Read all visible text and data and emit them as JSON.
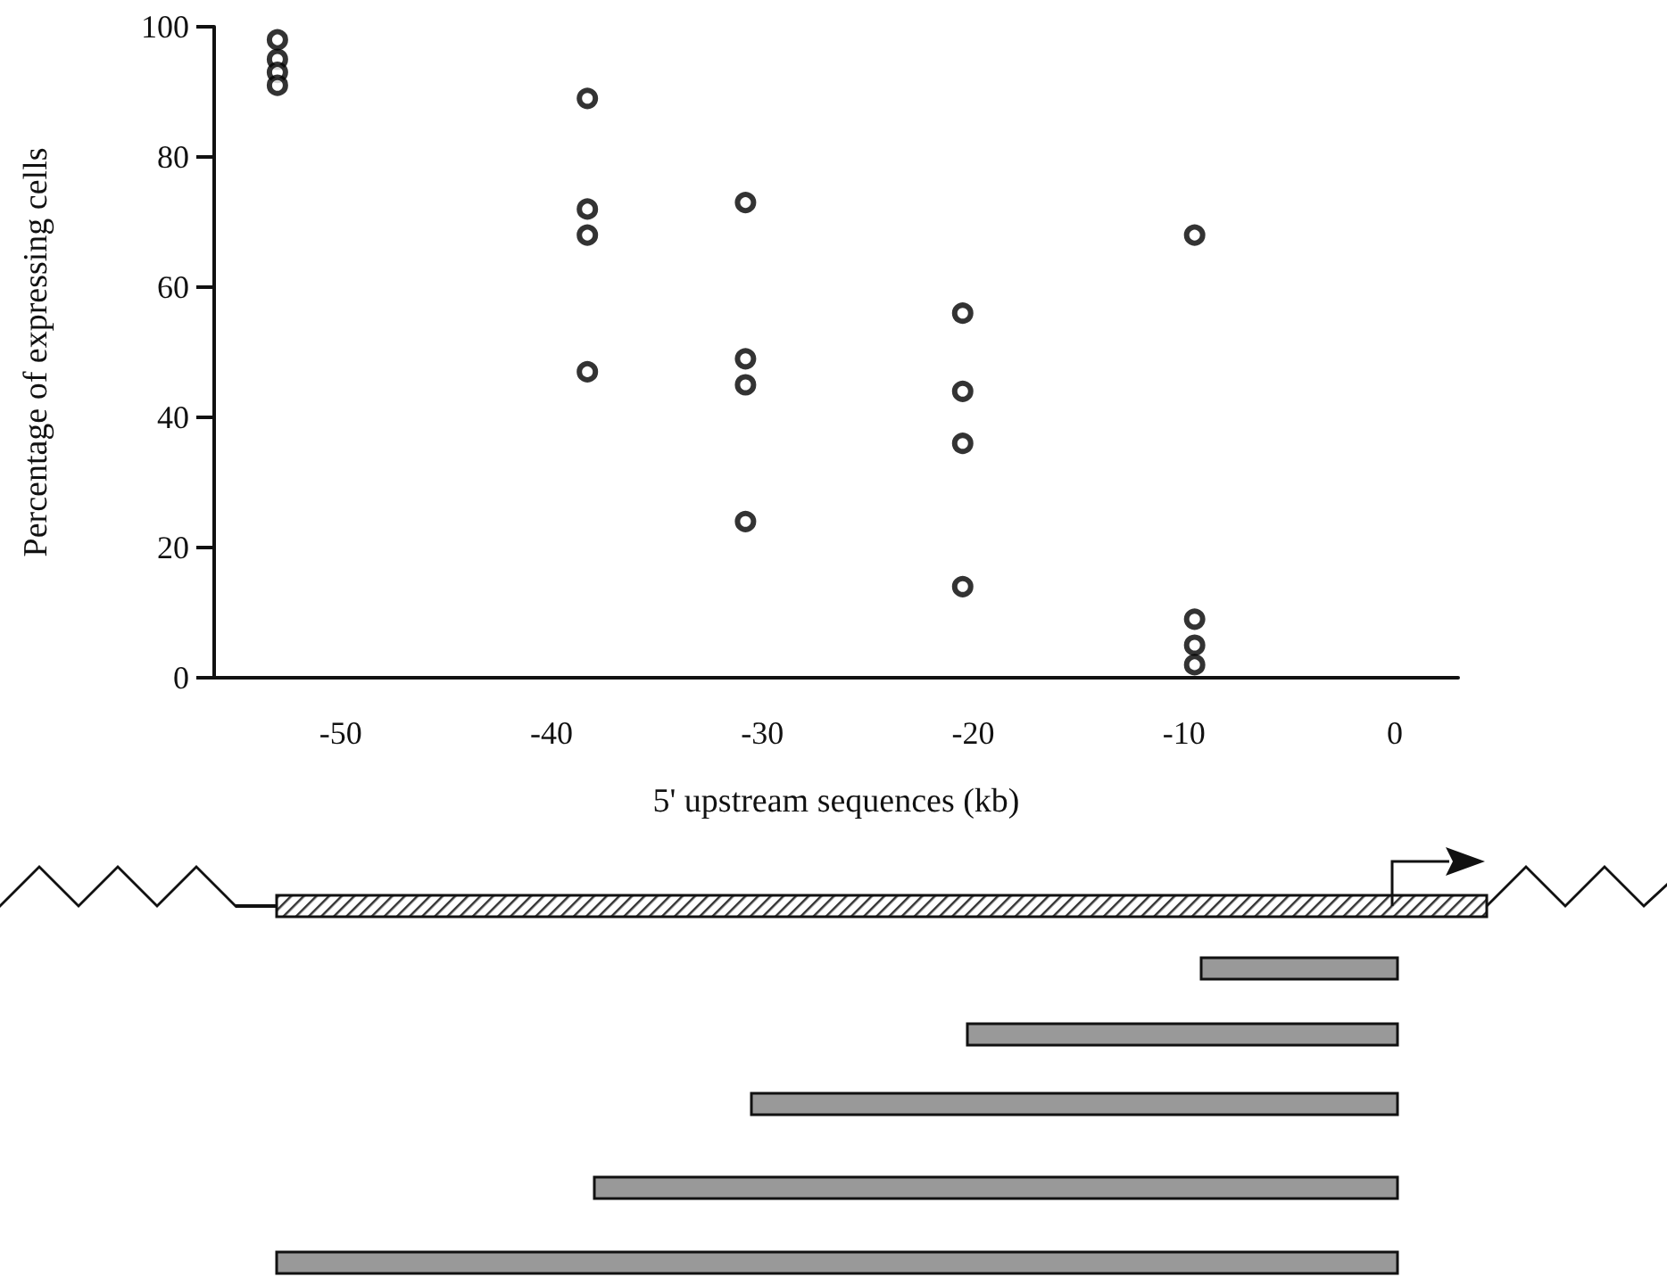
{
  "chart_data": {
    "type": "scatter",
    "xlabel": "5' upstream sequences (kb)",
    "ylabel": "Percentage of expressing cells",
    "x": [
      -53,
      -53,
      -53,
      -53,
      -38.3,
      -38.3,
      -38.3,
      -38.3,
      -30.8,
      -30.8,
      -30.8,
      -30.8,
      -20.5,
      -20.5,
      -20.5,
      -20.5,
      -9.5,
      -9.5,
      -9.5,
      -9.5
    ],
    "series": [
      {
        "color": "#000000",
        "values": [
          98,
          95,
          93,
          91,
          89,
          72,
          68,
          47,
          73,
          49,
          45,
          24,
          56,
          44,
          36,
          14,
          68,
          9,
          5,
          2
        ]
      }
    ],
    "marker": "circle",
    "grid": false,
    "xlim": [
      -56,
      3
    ],
    "xticks": [
      -50,
      -40,
      -30,
      -20,
      -10,
      0
    ],
    "ylim": [
      0,
      100
    ],
    "yticks": [
      0,
      20,
      40,
      60,
      80,
      100
    ]
  }
}
